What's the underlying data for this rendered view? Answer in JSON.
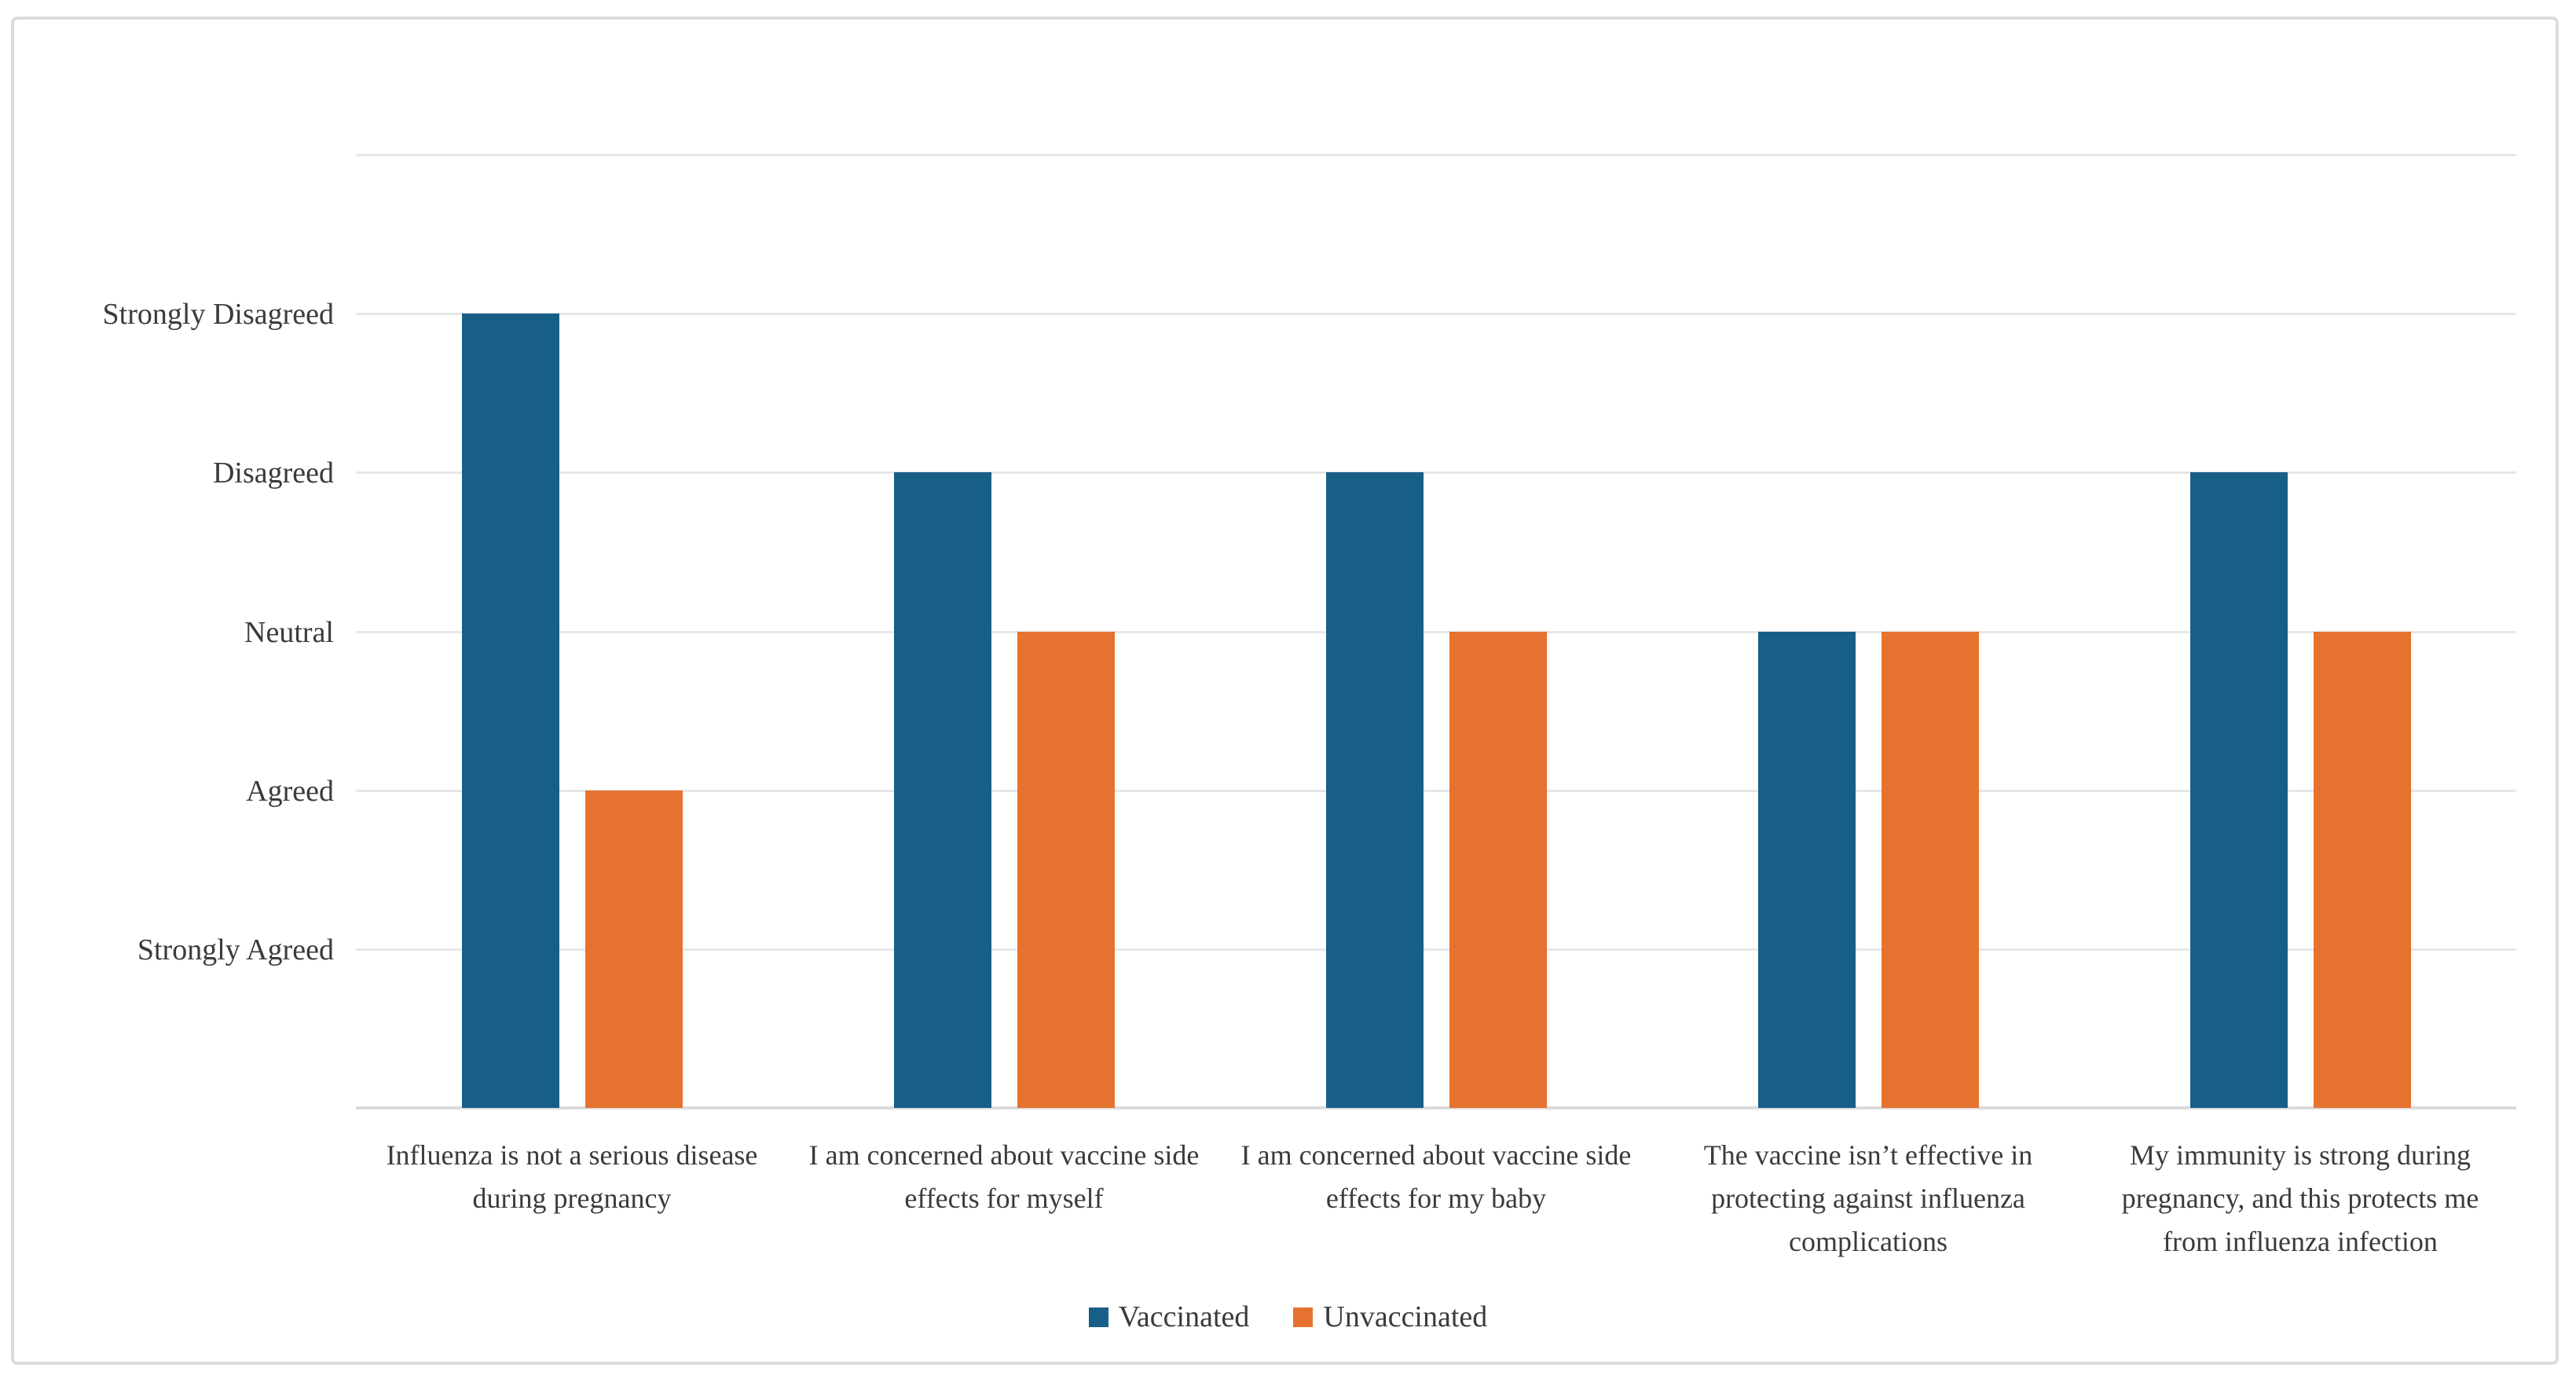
{
  "figure": {
    "border_color": "#DCDCDC",
    "background": "#ffffff"
  },
  "chart_data": {
    "type": "bar",
    "title": "",
    "xlabel": "",
    "ylabel": "",
    "grid": true,
    "legend_position": "bottom",
    "ylim": [
      0,
      6
    ],
    "categories": [
      "Influenza is not a serious disease during pregnancy",
      "I am concerned about vaccine side effects for myself",
      "I am concerned about vaccine side effects for my baby",
      "The vaccine isn’t effective in protecting against influenza complications",
      "My immunity is strong during pregnancy, and this protects me from influenza infection"
    ],
    "y_ticks": [
      {
        "value": 5,
        "label": "Strongly Disagreed"
      },
      {
        "value": 4,
        "label": "Disagreed"
      },
      {
        "value": 3,
        "label": "Neutral"
      },
      {
        "value": 2,
        "label": "Agreed"
      },
      {
        "value": 1,
        "label": "Strongly Agreed"
      }
    ],
    "series": [
      {
        "name": "Vaccinated",
        "color": "#185F87",
        "values": [
          5,
          4,
          4,
          3,
          4
        ],
        "levels": [
          "Strongly Disagreed",
          "Disagreed",
          "Disagreed",
          "Neutral",
          "Disagreed"
        ]
      },
      {
        "name": "Unvaccinated",
        "color": "#E6722F",
        "values": [
          2,
          3,
          3,
          3,
          3
        ],
        "levels": [
          "Agreed",
          "Neutral",
          "Neutral",
          "Neutral",
          "Neutral"
        ]
      }
    ],
    "colors": {
      "gridline": "#E7E7E7",
      "axis_line": "#DBDBDB",
      "text": "#3B3B3B"
    }
  }
}
